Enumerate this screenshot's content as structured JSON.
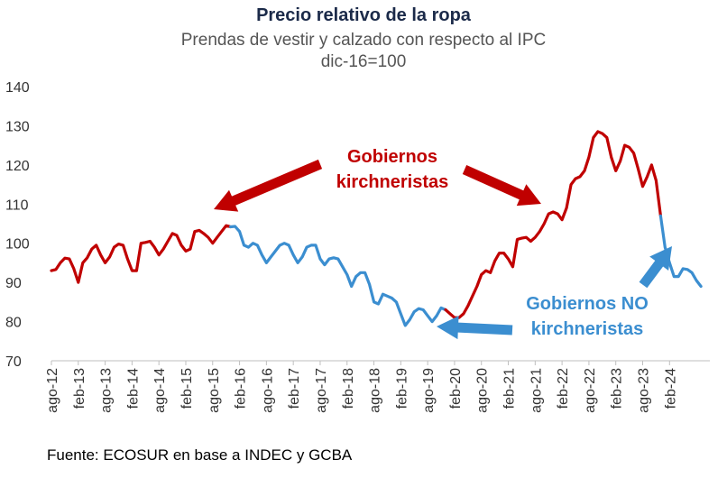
{
  "header": {
    "title": "Precio relativo de la ropa",
    "subtitle_line1": "Prendas de vestir y calzado con respecto al IPC",
    "subtitle_line2": "dic-16=100"
  },
  "footer": {
    "source": "Fuente: ECOSUR en base a INDEC y GCBA"
  },
  "colors": {
    "kirchnerista": "#c00000",
    "no_kirchnerista": "#3b8ed0"
  },
  "annotations": [
    {
      "line1": "Gobiernos",
      "line2": "kirchneristas",
      "color": "#c00000"
    },
    {
      "line1": "Gobiernos NO",
      "line2": "kirchneristas",
      "color": "#3b8ed0"
    }
  ],
  "chart_data": {
    "type": "line",
    "title": "Precio relativo de la ropa",
    "subtitle": "Prendas de vestir y calzado con respecto al IPC dic-16=100",
    "ylim": [
      70,
      140
    ],
    "yticks": [
      70,
      80,
      90,
      100,
      110,
      120,
      130,
      140
    ],
    "xlim": [
      "2012-08",
      "2024-11"
    ],
    "xtick_labels": [
      "ago-12",
      "feb-13",
      "ago-13",
      "feb-14",
      "ago-14",
      "feb-15",
      "ago-15",
      "feb-16",
      "ago-16",
      "feb-17",
      "ago-17",
      "feb-18",
      "ago-18",
      "feb-19",
      "ago-19",
      "feb-20",
      "ago-20",
      "feb-21",
      "ago-21",
      "feb-22",
      "ago-22",
      "feb-23",
      "ago-23",
      "feb-24"
    ],
    "grid": false,
    "legend": "none",
    "series": [
      {
        "color": "#c00000",
        "points": [
          [
            "2012-08",
            93
          ],
          [
            "2012-09",
            93.3
          ],
          [
            "2012-10",
            95
          ],
          [
            "2012-11",
            96.2
          ],
          [
            "2012-12",
            96
          ],
          [
            "2013-01",
            93.5
          ],
          [
            "2013-02",
            90
          ],
          [
            "2013-03",
            95
          ],
          [
            "2013-04",
            96.3
          ],
          [
            "2013-05",
            98.5
          ],
          [
            "2013-06",
            99.5
          ],
          [
            "2013-07",
            97
          ],
          [
            "2013-08",
            95
          ],
          [
            "2013-09",
            96.5
          ],
          [
            "2013-10",
            99
          ],
          [
            "2013-11",
            99.8
          ],
          [
            "2013-12",
            99.5
          ],
          [
            "2014-01",
            96
          ],
          [
            "2014-02",
            93
          ],
          [
            "2014-03",
            93
          ],
          [
            "2014-04",
            100
          ],
          [
            "2014-05",
            100.2
          ],
          [
            "2014-06",
            100.5
          ],
          [
            "2014-07",
            99
          ],
          [
            "2014-08",
            97
          ],
          [
            "2014-09",
            98.5
          ],
          [
            "2014-10",
            100.5
          ],
          [
            "2014-11",
            102.5
          ],
          [
            "2014-12",
            102
          ],
          [
            "2015-01",
            99.5
          ],
          [
            "2015-02",
            98
          ],
          [
            "2015-03",
            98.5
          ],
          [
            "2015-04",
            103
          ],
          [
            "2015-05",
            103.3
          ],
          [
            "2015-06",
            102.5
          ],
          [
            "2015-07",
            101.5
          ],
          [
            "2015-08",
            100
          ],
          [
            "2015-09",
            101.5
          ],
          [
            "2015-10",
            103
          ],
          [
            "2015-11",
            104.5
          ],
          [
            "2015-12",
            104.2
          ]
        ]
      },
      {
        "color": "#3b8ed0",
        "points": [
          [
            "2015-12",
            104.2
          ],
          [
            "2016-01",
            104.3
          ],
          [
            "2016-02",
            103
          ],
          [
            "2016-03",
            99.5
          ],
          [
            "2016-04",
            99
          ],
          [
            "2016-05",
            100
          ],
          [
            "2016-06",
            99.5
          ],
          [
            "2016-07",
            97
          ],
          [
            "2016-08",
            95
          ],
          [
            "2016-09",
            96.5
          ],
          [
            "2016-10",
            98
          ],
          [
            "2016-11",
            99.5
          ],
          [
            "2016-12",
            100
          ],
          [
            "2017-01",
            99.5
          ],
          [
            "2017-02",
            97
          ],
          [
            "2017-03",
            95
          ],
          [
            "2017-04",
            96.5
          ],
          [
            "2017-05",
            99
          ],
          [
            "2017-06",
            99.5
          ],
          [
            "2017-07",
            99.5
          ],
          [
            "2017-08",
            96
          ],
          [
            "2017-09",
            94.5
          ],
          [
            "2017-10",
            96
          ],
          [
            "2017-11",
            96.3
          ],
          [
            "2017-12",
            96
          ],
          [
            "2018-01",
            94
          ],
          [
            "2018-02",
            92
          ],
          [
            "2018-03",
            89
          ],
          [
            "2018-04",
            91.5
          ],
          [
            "2018-05",
            92.5
          ],
          [
            "2018-06",
            92.5
          ],
          [
            "2018-07",
            89.5
          ],
          [
            "2018-08",
            85
          ],
          [
            "2018-09",
            84.5
          ],
          [
            "2018-10",
            87
          ],
          [
            "2018-11",
            86.5
          ],
          [
            "2018-12",
            86
          ],
          [
            "2019-01",
            85
          ],
          [
            "2019-02",
            82
          ],
          [
            "2019-03",
            79
          ],
          [
            "2019-04",
            80.5
          ],
          [
            "2019-05",
            82.5
          ],
          [
            "2019-06",
            83.3
          ],
          [
            "2019-07",
            83
          ],
          [
            "2019-08",
            81.5
          ],
          [
            "2019-09",
            80
          ],
          [
            "2019-10",
            81.5
          ],
          [
            "2019-11",
            83.5
          ],
          [
            "2019-12",
            83
          ]
        ]
      },
      {
        "color": "#c00000",
        "points": [
          [
            "2019-12",
            83
          ],
          [
            "2020-01",
            82
          ],
          [
            "2020-02",
            81
          ],
          [
            "2020-03",
            81
          ],
          [
            "2020-04",
            82
          ],
          [
            "2020-05",
            84
          ],
          [
            "2020-06",
            86.5
          ],
          [
            "2020-07",
            89
          ],
          [
            "2020-08",
            92
          ],
          [
            "2020-09",
            93
          ],
          [
            "2020-10",
            92.5
          ],
          [
            "2020-11",
            95.5
          ],
          [
            "2020-12",
            97.5
          ],
          [
            "2021-01",
            97.5
          ],
          [
            "2021-02",
            96
          ],
          [
            "2021-03",
            94
          ],
          [
            "2021-04",
            101
          ],
          [
            "2021-05",
            101.3
          ],
          [
            "2021-06",
            101.5
          ],
          [
            "2021-07",
            100.5
          ],
          [
            "2021-08",
            101.5
          ],
          [
            "2021-09",
            103
          ],
          [
            "2021-10",
            105
          ],
          [
            "2021-11",
            107.5
          ],
          [
            "2021-12",
            108
          ],
          [
            "2022-01",
            107.5
          ],
          [
            "2022-02",
            106
          ],
          [
            "2022-03",
            109
          ],
          [
            "2022-04",
            115
          ],
          [
            "2022-05",
            116.5
          ],
          [
            "2022-06",
            117
          ],
          [
            "2022-07",
            118.5
          ],
          [
            "2022-08",
            122
          ],
          [
            "2022-09",
            127
          ],
          [
            "2022-10",
            128.5
          ],
          [
            "2022-11",
            128
          ],
          [
            "2022-12",
            127
          ],
          [
            "2023-01",
            122
          ],
          [
            "2023-02",
            118.5
          ],
          [
            "2023-03",
            121
          ],
          [
            "2023-04",
            125
          ],
          [
            "2023-05",
            124.5
          ],
          [
            "2023-06",
            123
          ],
          [
            "2023-07",
            119
          ],
          [
            "2023-08",
            114.5
          ],
          [
            "2023-09",
            117
          ],
          [
            "2023-10",
            120
          ],
          [
            "2023-11",
            116
          ],
          [
            "2023-12",
            107
          ]
        ]
      },
      {
        "color": "#3b8ed0",
        "points": [
          [
            "2023-12",
            107
          ],
          [
            "2024-01",
            99
          ],
          [
            "2024-02",
            95
          ],
          [
            "2024-03",
            91.5
          ],
          [
            "2024-04",
            91.5
          ],
          [
            "2024-05",
            93.5
          ],
          [
            "2024-06",
            93.3
          ],
          [
            "2024-07",
            92.5
          ],
          [
            "2024-08",
            90.5
          ],
          [
            "2024-09",
            89
          ]
        ]
      }
    ]
  }
}
